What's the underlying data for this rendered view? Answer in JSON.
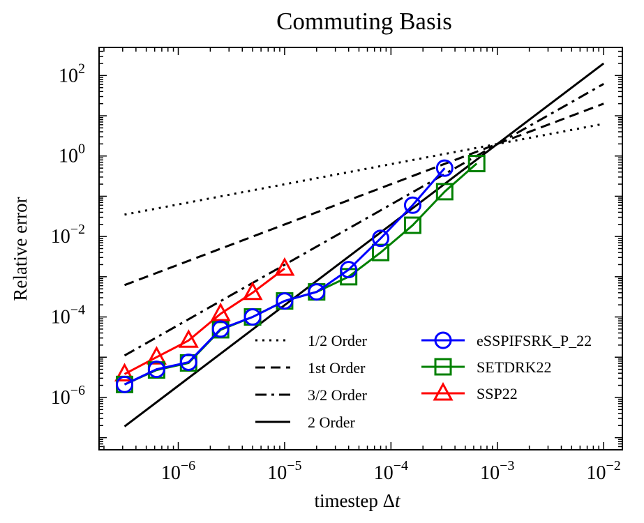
{
  "chart_data": {
    "type": "line",
    "title": "Commuting Basis",
    "xlabel": "timestep Δt",
    "ylabel": "Relative error",
    "xscale": "log",
    "yscale": "log",
    "xlim": [
      1.8e-07,
      0.015
    ],
    "ylim": [
      5e-08,
      500
    ],
    "grid": false,
    "legend_position": "lower-right",
    "xticks": [
      {
        "value": 1e-06,
        "base": "10",
        "exp": "−6"
      },
      {
        "value": 1e-05,
        "base": "10",
        "exp": "−5"
      },
      {
        "value": 0.0001,
        "base": "10",
        "exp": "−4"
      },
      {
        "value": 0.001,
        "base": "10",
        "exp": "−3"
      },
      {
        "value": 0.01,
        "base": "10",
        "exp": "−2"
      }
    ],
    "yticks": [
      {
        "value": 1e-06,
        "base": "10",
        "exp": "−6"
      },
      {
        "value": 0.0001,
        "base": "10",
        "exp": "−4"
      },
      {
        "value": 0.01,
        "base": "10",
        "exp": "−2"
      },
      {
        "value": 1,
        "base": "10",
        "exp": "0"
      },
      {
        "value": 100,
        "base": "10",
        "exp": "2"
      }
    ],
    "reference_lines": [
      {
        "name": "1/2 Order",
        "dash": "dotted",
        "x": [
          3.125e-07,
          0.01
        ],
        "y": [
          0.035,
          6.3
        ]
      },
      {
        "name": "1st Order",
        "dash": "dashed",
        "x": [
          3.125e-07,
          0.01
        ],
        "y": [
          0.00062,
          20
        ]
      },
      {
        "name": "3/2 Order",
        "dash": "dashdot",
        "x": [
          3.125e-07,
          0.01
        ],
        "y": [
          1.1e-05,
          62
        ]
      },
      {
        "name": "2 Order",
        "dash": "solid",
        "x": [
          3.125e-07,
          0.01
        ],
        "y": [
          1.9e-07,
          200
        ]
      }
    ],
    "series": [
      {
        "name": "eSSPIFSRK_P_22",
        "color": "#0000ff",
        "marker": "circle",
        "x": [
          3.125e-07,
          6.25e-07,
          1.25e-06,
          2.5e-06,
          5e-06,
          1e-05,
          2e-05,
          4e-05,
          8e-05,
          0.00016,
          0.00032
        ],
        "y": [
          2.1e-06,
          5e-06,
          7.5e-06,
          5e-05,
          0.0001,
          0.00025,
          0.00042,
          0.0015,
          0.009,
          0.06,
          0.5
        ]
      },
      {
        "name": "SETDRK22",
        "color": "#008000",
        "marker": "square",
        "x": [
          3.125e-07,
          6.25e-07,
          1.25e-06,
          2.5e-06,
          5e-06,
          1e-05,
          2e-05,
          4e-05,
          8e-05,
          0.00016,
          0.00032,
          0.00064
        ],
        "y": [
          2.1e-06,
          4.8e-06,
          7.2e-06,
          4.8e-05,
          0.0001,
          0.00025,
          0.00042,
          0.001,
          0.004,
          0.019,
          0.13,
          0.65
        ]
      },
      {
        "name": "SSP22",
        "color": "#ff0000",
        "marker": "triangle",
        "x": [
          3.125e-07,
          6.25e-07,
          1.25e-06,
          2.5e-06,
          5e-06,
          1e-05
        ],
        "y": [
          3.8e-06,
          1e-05,
          2.6e-05,
          0.00012,
          0.0004,
          0.0016
        ]
      }
    ]
  }
}
